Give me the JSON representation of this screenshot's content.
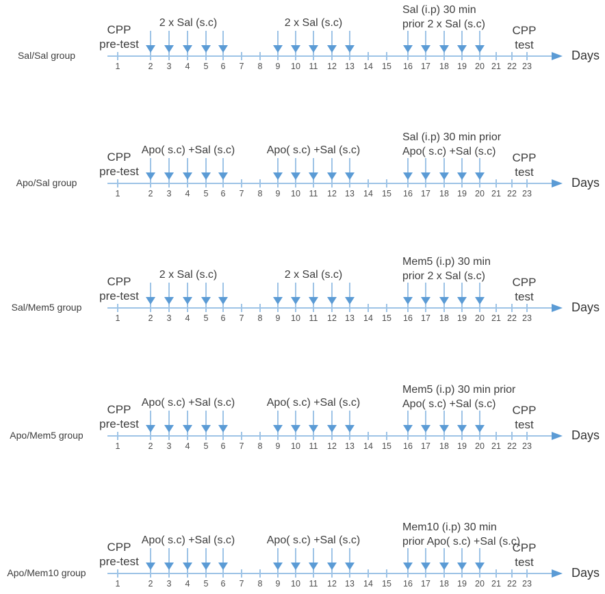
{
  "figure": {
    "axis_label": "Days",
    "colors": {
      "axis_light_blue": "#9DC3E6",
      "arrow_blue": "#5B9BD5",
      "text": "#3C3C3C"
    },
    "days": [
      "1",
      "2",
      "3",
      "4",
      "5",
      "6",
      "7",
      "8",
      "9",
      "10",
      "11",
      "12",
      "13",
      "14",
      "15",
      "16",
      "17",
      "18",
      "19",
      "20",
      "21",
      "22",
      "23"
    ],
    "arrow_days": [
      [
        2,
        3,
        4,
        5,
        6
      ],
      [
        9,
        10,
        11,
        12,
        13
      ],
      [
        16,
        17,
        18,
        19,
        20
      ]
    ],
    "rows": [
      {
        "group_label": "Sal/Sal group",
        "pretest_lines": [
          "CPP",
          "pre-test"
        ],
        "test_lines": [
          "CPP",
          "test"
        ],
        "block1_label": "2 x Sal (s.c)",
        "block2_label": "2 x Sal (s.c)",
        "block3_lines": [
          "Sal (i.p) 30 min",
          "prior 2 x Sal (s.c)"
        ]
      },
      {
        "group_label": "Apo/Sal group",
        "pretest_lines": [
          "CPP",
          "pre-test"
        ],
        "test_lines": [
          "CPP",
          "test"
        ],
        "block1_label": "Apo( s.c) +Sal (s.c)",
        "block2_label": "Apo( s.c) +Sal (s.c)",
        "block3_lines": [
          "Sal (i.p) 30 min prior",
          "Apo( s.c) +Sal (s.c)"
        ]
      },
      {
        "group_label": "Sal/Mem5 group",
        "pretest_lines": [
          "CPP",
          "pre-test"
        ],
        "test_lines": [
          "CPP",
          "test"
        ],
        "block1_label": "2 x Sal (s.c)",
        "block2_label": "2 x Sal (s.c)",
        "block3_lines": [
          "Mem5 (i.p) 30 min",
          "prior 2 x Sal (s.c)"
        ]
      },
      {
        "group_label": "Apo/Mem5 group",
        "pretest_lines": [
          "CPP",
          "pre-test"
        ],
        "test_lines": [
          "CPP",
          "test"
        ],
        "block1_label": "Apo( s.c) +Sal (s.c)",
        "block2_label": "Apo( s.c) +Sal (s.c)",
        "block3_lines": [
          "Mem5 (i.p) 30 min prior",
          "Apo( s.c) +Sal (s.c)"
        ]
      },
      {
        "group_label": "Apo/Mem10 group",
        "pretest_lines": [
          "CPP",
          "pre-test"
        ],
        "test_lines": [
          "CPP",
          "test"
        ],
        "block1_label": "Apo( s.c) +Sal (s.c)",
        "block2_label": "Apo( s.c) +Sal (s.c)",
        "block3_lines": [
          "Mem10 (i.p) 30 min",
          "prior Apo( s.c) +Sal (s.c)"
        ]
      }
    ]
  }
}
